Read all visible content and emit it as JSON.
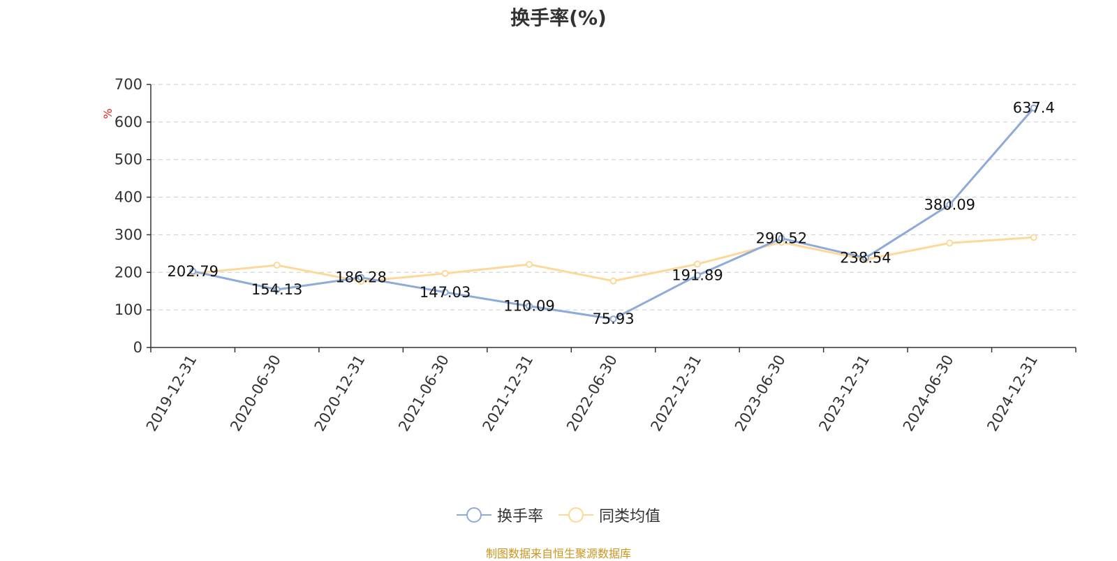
{
  "chart_data": {
    "type": "line",
    "title": "换手率(%)",
    "ylabel": "%",
    "xlabel": "",
    "ylim": [
      0,
      700
    ],
    "yticks": [
      0,
      100,
      200,
      300,
      400,
      500,
      600,
      700
    ],
    "categories": [
      "2019-12-31",
      "2020-06-30",
      "2020-12-31",
      "2021-06-30",
      "2021-12-31",
      "2022-06-30",
      "2022-12-31",
      "2023-06-30",
      "2023-12-31",
      "2024-06-30",
      "2024-12-31"
    ],
    "series": [
      {
        "name": "换手率",
        "color": "#8eaad8",
        "values": [
          202.79,
          154.13,
          186.28,
          147.03,
          110.09,
          75.93,
          191.89,
          290.52,
          238.54,
          380.09,
          637.4
        ],
        "labels": [
          "202.79",
          "154.13",
          "186.28",
          "147.03",
          "110.09",
          "75.93",
          "191.89",
          "290.52",
          "238.54",
          "380.09",
          "637.4"
        ]
      },
      {
        "name": "同类均值",
        "color": "#fdd89a",
        "values": [
          197,
          219,
          176,
          197,
          221,
          177,
          222,
          280,
          234,
          278,
          293
        ]
      }
    ],
    "grid": true,
    "legend": "bottom-center"
  },
  "legend": {
    "series1": "换手率",
    "series2": "同类均值"
  },
  "source": "制图数据来自恒生聚源数据库"
}
